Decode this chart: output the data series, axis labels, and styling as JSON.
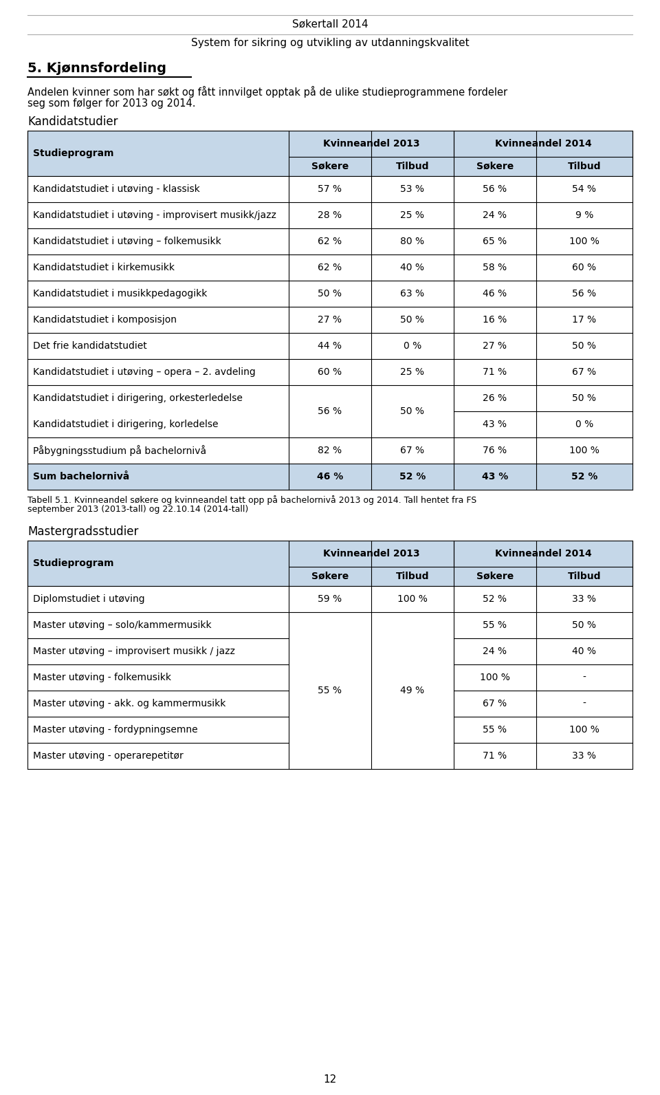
{
  "page_title": "Søkertall 2014",
  "page_subtitle": "System for sikring og utvikling av utdanningskvalitet",
  "section_title": "5. Kjønnsfordeling",
  "section_text_1": "Andelen kvinner som har søkt og fått innvilget opptak på de ulike studieprogrammene fordeler",
  "section_text_2": "seg som følger for 2013 og 2014.",
  "kandidat_title": "Kandidatstudier",
  "header1": "Kvinneandel 2013",
  "header2": "Kvinneandel 2014",
  "subheader": [
    "Søkere",
    "Tilbud",
    "Søkere",
    "Tilbud"
  ],
  "col_header": "Studieprogram",
  "kandidat_rows": [
    {
      "program": "Kandidatstudiet i utøving - klassisk",
      "v": [
        "57 %",
        "53 %",
        "56 %",
        "54 %"
      ],
      "bold": false,
      "type": "normal"
    },
    {
      "program": "Kandidatstudiet i utøving - improvisert musikk/jazz",
      "v": [
        "28 %",
        "25 %",
        "24 %",
        "9 %"
      ],
      "bold": false,
      "type": "normal"
    },
    {
      "program": "Kandidatstudiet i utøving – folkemusikk",
      "v": [
        "62 %",
        "80 %",
        "65 %",
        "100 %"
      ],
      "bold": false,
      "type": "normal"
    },
    {
      "program": "Kandidatstudiet i kirkemusikk",
      "v": [
        "62 %",
        "40 %",
        "58 %",
        "60 %"
      ],
      "bold": false,
      "type": "normal"
    },
    {
      "program": "Kandidatstudiet i musikkpedagogikk",
      "v": [
        "50 %",
        "63 %",
        "46 %",
        "56 %"
      ],
      "bold": false,
      "type": "normal"
    },
    {
      "program": "Kandidatstudiet i komposisjon",
      "v": [
        "27 %",
        "50 %",
        "16 %",
        "17 %"
      ],
      "bold": false,
      "type": "normal"
    },
    {
      "program": "Det frie kandidatstudiet",
      "v": [
        "44 %",
        "0 %",
        "27 %",
        "50 %"
      ],
      "bold": false,
      "type": "normal"
    },
    {
      "program": "Kandidatstudiet i utøving – opera – 2. avdeling",
      "v": [
        "60 %",
        "25 %",
        "71 %",
        "67 %"
      ],
      "bold": false,
      "type": "normal"
    },
    {
      "program": "Kandidatstudiet i dirigering, orkesterledelse",
      "v": [
        "56 %",
        "50 %",
        "26 %",
        "50 %"
      ],
      "bold": false,
      "type": "merge_top",
      "program2": "Kandidatstudiet i dirigering, korledelse",
      "v2": [
        "",
        "",
        "43 %",
        "0 %"
      ]
    },
    {
      "program": "Påbygningsstudium på bachelornivå",
      "v": [
        "82 %",
        "67 %",
        "76 %",
        "100 %"
      ],
      "bold": false,
      "type": "normal"
    },
    {
      "program": "Sum bachelornivå",
      "v": [
        "46 %",
        "52 %",
        "43 %",
        "52 %"
      ],
      "bold": true,
      "type": "sum"
    }
  ],
  "tabell_note_1": "Tabell 5.1. Kvinneandel søkere og kvinneandel tatt opp på bachelornivå 2013 og 2014. Tall hentet fra FS",
  "tabell_note_2": "september 2013 (2013-tall) og 22.10.14 (2014-tall)",
  "master_title": "Mastergradsstudier",
  "master_rows": [
    {
      "program": "Diplomstudiet i utøving",
      "v": [
        "59 %",
        "100 %",
        "52 %",
        "33 %"
      ],
      "type": "normal"
    },
    {
      "program": "Master utøving – solo/kammermusikk",
      "v": [
        "55 %",
        "49 %",
        "55 %",
        "50 %"
      ],
      "type": "merge_top",
      "sub_rows": [
        {
          "program": "Master utøving – improvisert musikk / jazz",
          "v3": "24 %",
          "v4": "40 %"
        },
        {
          "program": "Master utøving - folkemusikk",
          "v3": "100 %",
          "v4": "-"
        },
        {
          "program": "Master utøving - akk. og kammermusikk",
          "v3": "67 %",
          "v4": "-"
        },
        {
          "program": "Master utøving - fordypningsemne",
          "v3": "55 %",
          "v4": "100 %"
        },
        {
          "program": "Master utøving - operarepetitør",
          "v3": "71 %",
          "v4": "33 %"
        }
      ]
    }
  ],
  "page_number": "12",
  "bg_color": "#ffffff",
  "header_bg": "#c5d7e8",
  "line_color": "#000000"
}
